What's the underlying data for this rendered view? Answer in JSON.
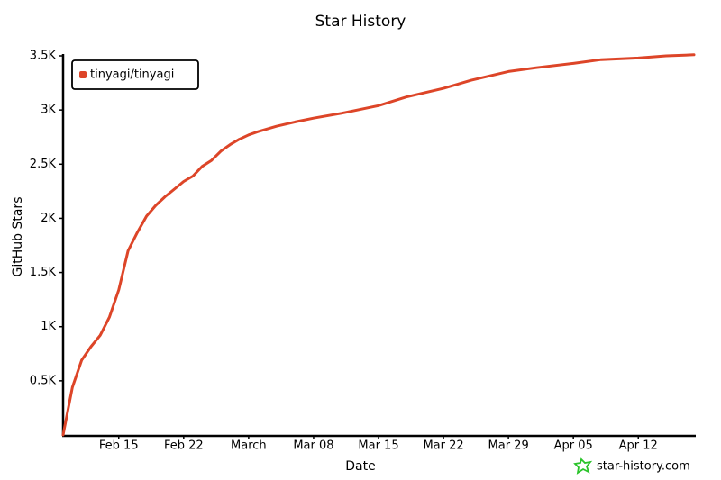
{
  "chart_data": {
    "type": "line",
    "title": "Star History",
    "x_label": "Date",
    "y_label": "GitHub Stars",
    "watermark": "star-history.com",
    "x": [
      "Feb 09",
      "Feb 10",
      "Feb 11",
      "Feb 12",
      "Feb 13",
      "Feb 14",
      "Feb 15",
      "Feb 16",
      "Feb 17",
      "Feb 18",
      "Feb 19",
      "Feb 20",
      "Feb 21",
      "Feb 22",
      "Feb 23",
      "Feb 24",
      "Feb 25",
      "Feb 26",
      "Feb 27",
      "Feb 28",
      "Mar 01",
      "Mar 02",
      "Mar 04",
      "Mar 06",
      "Mar 08",
      "Mar 11",
      "Mar 15",
      "Mar 18",
      "Mar 22",
      "Mar 25",
      "Mar 29",
      "Apr 01",
      "Apr 05",
      "Apr 08",
      "Apr 12",
      "Apr 15",
      "Apr 18"
    ],
    "series": [
      {
        "name": "tinyagi/tinyagi",
        "color": "#dd4528",
        "values": [
          0,
          440,
          690,
          815,
          920,
          1090,
          1340,
          1700,
          1870,
          2020,
          2120,
          2200,
          2270,
          2340,
          2390,
          2480,
          2535,
          2620,
          2680,
          2730,
          2770,
          2800,
          2850,
          2890,
          2925,
          2970,
          3040,
          3120,
          3200,
          3275,
          3355,
          3390,
          3430,
          3465,
          3480,
          3500,
          3510
        ]
      }
    ],
    "xlim": [
      "Feb 09",
      "Apr 18"
    ],
    "xticks": [
      "Feb 15",
      "Feb 22",
      {
        "value": "Mar 01",
        "label": "March"
      },
      "Mar 08",
      "Mar 15",
      "Mar 22",
      "Mar 29",
      "Apr 05",
      "Apr 12"
    ],
    "ylim": [
      0,
      3500
    ],
    "yticks": [
      {
        "value": 500,
        "label": "0.5K"
      },
      {
        "value": 1000,
        "label": "1K"
      },
      {
        "value": 1500,
        "label": "1.5K"
      },
      {
        "value": 2000,
        "label": "2K"
      },
      {
        "value": 2500,
        "label": "2.5K"
      },
      {
        "value": 3000,
        "label": "3K"
      },
      {
        "value": 3500,
        "label": "3.5K"
      }
    ],
    "grid": false,
    "legend": "top-left"
  }
}
